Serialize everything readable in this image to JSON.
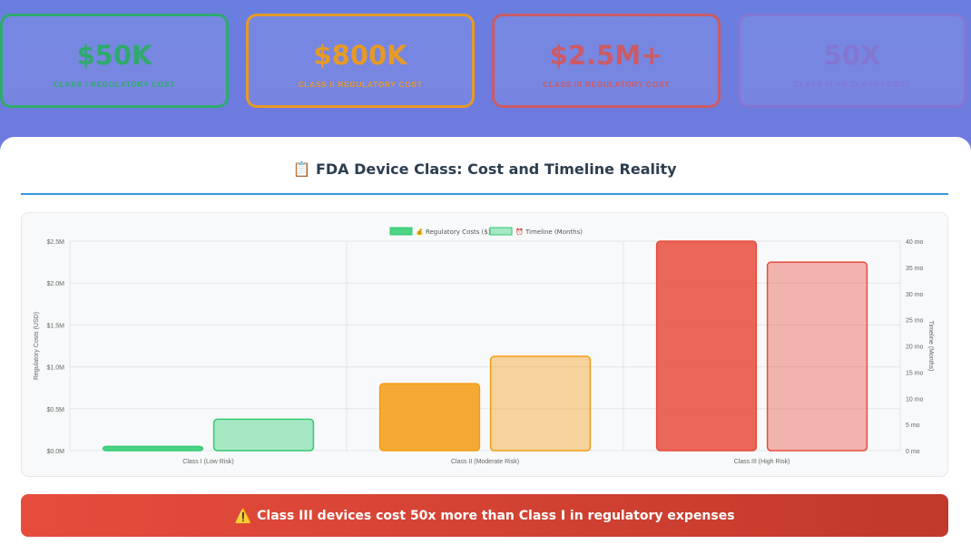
{
  "stats": [
    {
      "value": "$50K",
      "label": "Class I regulatory cost",
      "color": "#27ae60",
      "opacity": 0.9
    },
    {
      "value": "$800K",
      "label": "Class II regulatory cost",
      "color": "#f39c12",
      "opacity": 0.9
    },
    {
      "value": "$2.5M+",
      "label": "Class III regulatory cost",
      "color": "#e74c3c",
      "opacity": 0.75
    },
    {
      "value": "50X",
      "label": "Class III vs Class I cost",
      "color": "#9b59b6",
      "opacity": 0.35
    }
  ],
  "panel": {
    "icon": "📋",
    "title": "FDA Device Class: Cost and Timeline Reality"
  },
  "banner": {
    "icon": "⚠️",
    "text": "Class III devices cost 50x more than Class I in regulatory expenses"
  },
  "chart_data": {
    "type": "bar",
    "categories": [
      "Class I (Low Risk)",
      "Class II (Moderate Risk)",
      "Class III (High Risk)"
    ],
    "series": [
      {
        "name": "💰 Regulatory Costs ($)",
        "axis": "left",
        "values": [
          50000,
          800000,
          2500000
        ],
        "colors": [
          "#2ecc71",
          "#f39c12",
          "#e74c3c"
        ],
        "fill_opacity": 0.85
      },
      {
        "name": "⏰ Timeline (Months)",
        "axis": "right",
        "values": [
          6,
          18,
          36
        ],
        "colors": [
          "#2ecc71",
          "#f39c12",
          "#e74c3c"
        ],
        "fill_opacity": 0.4
      }
    ],
    "y_left": {
      "label": "Regulatory Costs (USD)",
      "min": 0,
      "max": 2500000,
      "ticks": [
        0,
        500000,
        1000000,
        1500000,
        2000000,
        2500000
      ],
      "tick_labels": [
        "$0.0M",
        "$0.5M",
        "$1.0M",
        "$1.5M",
        "$2.0M",
        "$2.5M"
      ]
    },
    "y_right": {
      "label": "Timeline (Months)",
      "min": 0,
      "max": 40,
      "ticks": [
        0,
        5,
        10,
        15,
        20,
        25,
        30,
        35,
        40
      ],
      "tick_labels": [
        "0 mo",
        "5 mo",
        "10 mo",
        "15 mo",
        "20 mo",
        "25 mo",
        "30 mo",
        "35 mo",
        "40 mo"
      ]
    },
    "grid": true,
    "legend": "top"
  }
}
